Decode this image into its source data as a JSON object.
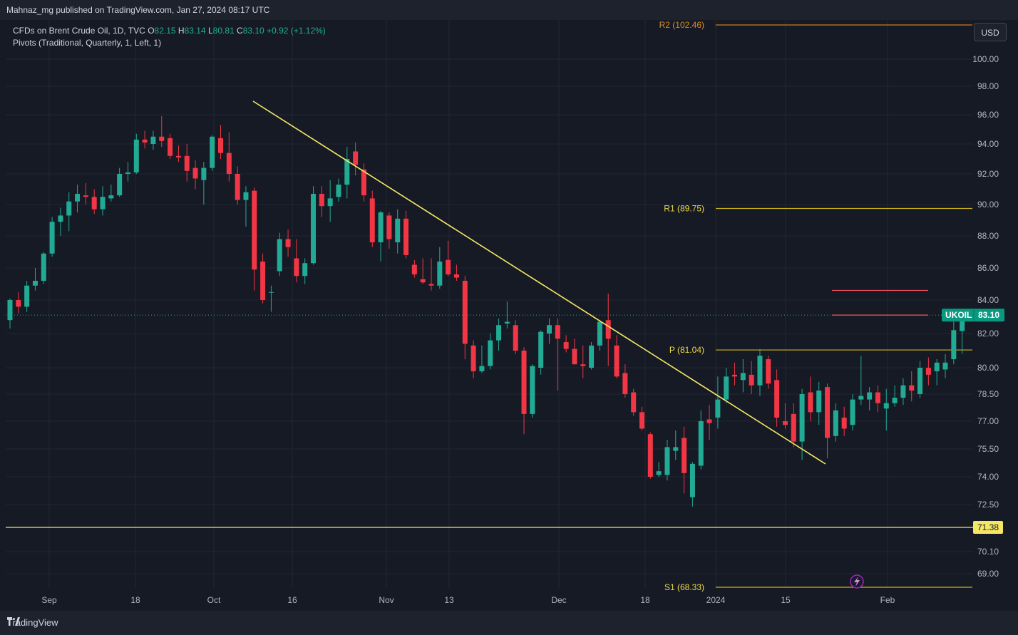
{
  "header": {
    "published_text": "Mahnaz_mg published on TradingView.com, Jan 27, 2024 08:17 UTC"
  },
  "legend": {
    "symbol_line": "CFDs on Brent Crude Oil, 1D, TVC",
    "open_label": "O",
    "open_value": "82.15",
    "high_label": "H",
    "high_value": "83.14",
    "low_label": "L",
    "low_value": "80.81",
    "close_label": "C",
    "close_value": "83.10",
    "change": "+0.92 (+1.12%)",
    "indicator": "Pivots (Traditional, Quarterly, 1, Left, 1)"
  },
  "currency_button": "USD",
  "footer": {
    "brand": "TradingView"
  },
  "colors": {
    "up": "#22ab94",
    "down": "#f23645",
    "trendline": "#f5e663",
    "pivot": "#c9b21b",
    "r2": "#c97d1b",
    "hline": "#f5e663",
    "redline": "#f7525f"
  },
  "chart_data": {
    "type": "candlestick",
    "symbol": "UKOIL",
    "interval": "1D",
    "ylim": [
      67.8,
      102.46
    ],
    "y_ticks": [
      "100.00",
      "98.00",
      "96.00",
      "94.00",
      "92.00",
      "90.00",
      "88.00",
      "86.00",
      "84.00",
      "82.00",
      "80.00",
      "78.50",
      "77.00",
      "75.50",
      "74.00",
      "72.50",
      "70.10",
      "69.00"
    ],
    "x_ticks": [
      "Sep",
      "18",
      "Oct",
      "16",
      "Nov",
      "13",
      "Dec",
      "18",
      "2024",
      "15",
      "Feb"
    ],
    "last_price": {
      "label": "UKOIL",
      "value": "83.10"
    },
    "horizontal_line": {
      "value": "71.38"
    },
    "pivots": [
      {
        "label": "R2 (102.46)",
        "value": 102.46
      },
      {
        "label": "R1 (89.75)",
        "value": 89.75
      },
      {
        "label": "P (81.04)",
        "value": 81.04
      },
      {
        "label": "S1 (68.33)",
        "value": 68.33
      }
    ],
    "trendline": {
      "from": {
        "date": "2023-10-09",
        "price": 97.0
      },
      "to": {
        "date": "2024-01-22",
        "price": 74.5
      }
    },
    "candles": [
      {
        "o": 82.8,
        "h": 84.1,
        "l": 82.3,
        "c": 84.0
      },
      {
        "o": 84.0,
        "h": 84.5,
        "l": 83.2,
        "c": 83.6
      },
      {
        "o": 83.6,
        "h": 85.2,
        "l": 83.3,
        "c": 84.9
      },
      {
        "o": 84.9,
        "h": 86.0,
        "l": 84.6,
        "c": 85.2
      },
      {
        "o": 85.2,
        "h": 87.0,
        "l": 85.0,
        "c": 86.9
      },
      {
        "o": 86.9,
        "h": 89.2,
        "l": 86.7,
        "c": 88.9
      },
      {
        "o": 88.9,
        "h": 89.8,
        "l": 88.0,
        "c": 89.3
      },
      {
        "o": 89.3,
        "h": 90.8,
        "l": 88.3,
        "c": 90.2
      },
      {
        "o": 90.2,
        "h": 91.3,
        "l": 89.5,
        "c": 90.7
      },
      {
        "o": 90.6,
        "h": 91.4,
        "l": 90.0,
        "c": 90.5
      },
      {
        "o": 90.5,
        "h": 91.0,
        "l": 89.4,
        "c": 89.7
      },
      {
        "o": 89.7,
        "h": 91.2,
        "l": 89.3,
        "c": 90.5
      },
      {
        "o": 90.4,
        "h": 91.3,
        "l": 90.2,
        "c": 90.6
      },
      {
        "o": 90.6,
        "h": 92.4,
        "l": 90.5,
        "c": 92.0
      },
      {
        "o": 92.0,
        "h": 92.8,
        "l": 91.5,
        "c": 92.1
      },
      {
        "o": 92.1,
        "h": 94.7,
        "l": 92.0,
        "c": 94.3
      },
      {
        "o": 94.3,
        "h": 94.9,
        "l": 93.7,
        "c": 94.1
      },
      {
        "o": 94.0,
        "h": 94.9,
        "l": 93.6,
        "c": 94.5
      },
      {
        "o": 94.5,
        "h": 95.9,
        "l": 93.8,
        "c": 94.2
      },
      {
        "o": 94.4,
        "h": 94.7,
        "l": 93.0,
        "c": 93.2
      },
      {
        "o": 93.2,
        "h": 93.9,
        "l": 92.8,
        "c": 93.1
      },
      {
        "o": 93.2,
        "h": 94.0,
        "l": 91.5,
        "c": 92.2
      },
      {
        "o": 92.4,
        "h": 92.9,
        "l": 91.0,
        "c": 91.7
      },
      {
        "o": 91.6,
        "h": 92.8,
        "l": 90.0,
        "c": 92.4
      },
      {
        "o": 92.4,
        "h": 94.6,
        "l": 92.2,
        "c": 94.5
      },
      {
        "o": 94.4,
        "h": 95.3,
        "l": 93.0,
        "c": 93.4
      },
      {
        "o": 93.4,
        "h": 94.8,
        "l": 91.5,
        "c": 92.0
      },
      {
        "o": 92.0,
        "h": 92.5,
        "l": 90.0,
        "c": 90.3
      },
      {
        "o": 90.3,
        "h": 91.2,
        "l": 88.6,
        "c": 90.8
      },
      {
        "o": 90.9,
        "h": 91.1,
        "l": 84.6,
        "c": 85.9
      },
      {
        "o": 86.4,
        "h": 86.9,
        "l": 83.8,
        "c": 84.0
      },
      {
        "o": 84.5,
        "h": 84.9,
        "l": 83.3,
        "c": 84.5
      },
      {
        "o": 85.8,
        "h": 88.2,
        "l": 85.5,
        "c": 87.8
      },
      {
        "o": 87.8,
        "h": 88.4,
        "l": 86.7,
        "c": 87.3
      },
      {
        "o": 86.6,
        "h": 87.8,
        "l": 85.1,
        "c": 85.5
      },
      {
        "o": 85.5,
        "h": 86.6,
        "l": 85.0,
        "c": 86.3
      },
      {
        "o": 86.3,
        "h": 91.2,
        "l": 86.2,
        "c": 90.7
      },
      {
        "o": 90.7,
        "h": 91.2,
        "l": 89.2,
        "c": 89.9
      },
      {
        "o": 89.9,
        "h": 91.6,
        "l": 88.9,
        "c": 90.4
      },
      {
        "o": 90.5,
        "h": 91.7,
        "l": 90.2,
        "c": 91.3
      },
      {
        "o": 91.3,
        "h": 93.8,
        "l": 90.4,
        "c": 93.0
      },
      {
        "o": 93.5,
        "h": 94.1,
        "l": 91.9,
        "c": 92.6
      },
      {
        "o": 92.3,
        "h": 92.7,
        "l": 90.2,
        "c": 90.6
      },
      {
        "o": 90.4,
        "h": 90.9,
        "l": 87.3,
        "c": 87.6
      },
      {
        "o": 87.6,
        "h": 89.6,
        "l": 86.4,
        "c": 89.5
      },
      {
        "o": 89.3,
        "h": 89.5,
        "l": 87.2,
        "c": 87.8
      },
      {
        "o": 87.6,
        "h": 89.7,
        "l": 86.9,
        "c": 89.1
      },
      {
        "o": 89.1,
        "h": 89.6,
        "l": 86.6,
        "c": 86.8
      },
      {
        "o": 86.2,
        "h": 86.5,
        "l": 85.4,
        "c": 85.6
      },
      {
        "o": 85.3,
        "h": 86.6,
        "l": 85.0,
        "c": 85.1
      },
      {
        "o": 85.0,
        "h": 86.6,
        "l": 84.6,
        "c": 84.9
      },
      {
        "o": 84.9,
        "h": 87.3,
        "l": 84.7,
        "c": 86.4
      },
      {
        "o": 86.5,
        "h": 87.7,
        "l": 85.5,
        "c": 85.6
      },
      {
        "o": 85.6,
        "h": 86.2,
        "l": 85.2,
        "c": 85.4
      },
      {
        "o": 85.2,
        "h": 85.5,
        "l": 80.5,
        "c": 81.4
      },
      {
        "o": 81.3,
        "h": 81.6,
        "l": 79.4,
        "c": 79.8
      },
      {
        "o": 79.8,
        "h": 81.3,
        "l": 79.7,
        "c": 80.1
      },
      {
        "o": 80.1,
        "h": 82.0,
        "l": 79.9,
        "c": 81.6
      },
      {
        "o": 81.6,
        "h": 82.9,
        "l": 81.0,
        "c": 82.5
      },
      {
        "o": 82.6,
        "h": 83.9,
        "l": 82.3,
        "c": 82.7
      },
      {
        "o": 82.5,
        "h": 82.8,
        "l": 80.8,
        "c": 81.0
      },
      {
        "o": 81.0,
        "h": 81.2,
        "l": 76.3,
        "c": 77.4
      },
      {
        "o": 77.4,
        "h": 80.2,
        "l": 77.2,
        "c": 80.1
      },
      {
        "o": 80.0,
        "h": 82.2,
        "l": 79.6,
        "c": 82.1
      },
      {
        "o": 82.0,
        "h": 82.9,
        "l": 81.4,
        "c": 82.5
      },
      {
        "o": 82.5,
        "h": 82.9,
        "l": 78.7,
        "c": 81.7
      },
      {
        "o": 81.5,
        "h": 81.9,
        "l": 80.9,
        "c": 81.1
      },
      {
        "o": 81.1,
        "h": 81.7,
        "l": 80.2,
        "c": 80.2
      },
      {
        "o": 80.2,
        "h": 81.3,
        "l": 79.4,
        "c": 80.1
      },
      {
        "o": 80.0,
        "h": 81.5,
        "l": 79.9,
        "c": 81.3
      },
      {
        "o": 81.3,
        "h": 82.8,
        "l": 81.0,
        "c": 82.7
      },
      {
        "o": 82.8,
        "h": 84.4,
        "l": 80.1,
        "c": 81.7
      },
      {
        "o": 81.3,
        "h": 81.9,
        "l": 79.4,
        "c": 79.5
      },
      {
        "o": 79.7,
        "h": 80.2,
        "l": 78.3,
        "c": 78.5
      },
      {
        "o": 78.6,
        "h": 78.8,
        "l": 77.3,
        "c": 77.5
      },
      {
        "o": 77.5,
        "h": 77.8,
        "l": 76.5,
        "c": 76.6
      },
      {
        "o": 76.3,
        "h": 76.4,
        "l": 73.9,
        "c": 74.0
      },
      {
        "o": 74.1,
        "h": 74.8,
        "l": 74.0,
        "c": 74.3
      },
      {
        "o": 74.1,
        "h": 76.0,
        "l": 73.8,
        "c": 75.6
      },
      {
        "o": 75.4,
        "h": 76.5,
        "l": 74.9,
        "c": 75.6
      },
      {
        "o": 76.1,
        "h": 76.7,
        "l": 73.1,
        "c": 74.2
      },
      {
        "o": 72.9,
        "h": 74.8,
        "l": 72.4,
        "c": 74.7
      },
      {
        "o": 74.6,
        "h": 77.6,
        "l": 74.4,
        "c": 77.0
      },
      {
        "o": 77.1,
        "h": 77.9,
        "l": 76.0,
        "c": 76.9
      },
      {
        "o": 77.2,
        "h": 79.5,
        "l": 76.6,
        "c": 78.2
      },
      {
        "o": 78.2,
        "h": 80.0,
        "l": 78.0,
        "c": 79.5
      },
      {
        "o": 79.6,
        "h": 80.3,
        "l": 79.0,
        "c": 79.5
      },
      {
        "o": 79.3,
        "h": 80.5,
        "l": 78.6,
        "c": 79.7
      },
      {
        "o": 79.6,
        "h": 80.4,
        "l": 78.5,
        "c": 79.0
      },
      {
        "o": 79.0,
        "h": 81.1,
        "l": 78.4,
        "c": 80.7
      },
      {
        "o": 80.5,
        "h": 80.7,
        "l": 78.8,
        "c": 79.1
      },
      {
        "o": 79.3,
        "h": 79.9,
        "l": 76.7,
        "c": 77.2
      },
      {
        "o": 77.0,
        "h": 78.0,
        "l": 76.6,
        "c": 76.8
      },
      {
        "o": 77.4,
        "h": 78.0,
        "l": 75.6,
        "c": 75.9
      },
      {
        "o": 75.9,
        "h": 78.8,
        "l": 74.9,
        "c": 78.5
      },
      {
        "o": 78.6,
        "h": 79.5,
        "l": 77.0,
        "c": 77.5
      },
      {
        "o": 77.5,
        "h": 79.2,
        "l": 76.8,
        "c": 78.7
      },
      {
        "o": 78.9,
        "h": 79.1,
        "l": 75.0,
        "c": 76.1
      },
      {
        "o": 76.2,
        "h": 78.0,
        "l": 75.9,
        "c": 77.6
      },
      {
        "o": 77.2,
        "h": 77.8,
        "l": 76.2,
        "c": 76.6
      },
      {
        "o": 76.8,
        "h": 78.5,
        "l": 76.5,
        "c": 78.2
      },
      {
        "o": 78.2,
        "h": 80.7,
        "l": 77.9,
        "c": 78.4
      },
      {
        "o": 78.2,
        "h": 78.9,
        "l": 77.6,
        "c": 78.6
      },
      {
        "o": 78.6,
        "h": 79.0,
        "l": 77.5,
        "c": 78.0
      },
      {
        "o": 77.7,
        "h": 78.8,
        "l": 76.5,
        "c": 78.0
      },
      {
        "o": 78.0,
        "h": 79.0,
        "l": 77.8,
        "c": 78.3
      },
      {
        "o": 78.3,
        "h": 79.4,
        "l": 77.9,
        "c": 79.0
      },
      {
        "o": 79.0,
        "h": 79.8,
        "l": 78.1,
        "c": 78.7
      },
      {
        "o": 78.5,
        "h": 80.4,
        "l": 78.3,
        "c": 80.0
      },
      {
        "o": 80.0,
        "h": 80.6,
        "l": 79.0,
        "c": 79.6
      },
      {
        "o": 79.8,
        "h": 80.5,
        "l": 79.0,
        "c": 80.3
      },
      {
        "o": 79.9,
        "h": 80.8,
        "l": 79.4,
        "c": 80.3
      },
      {
        "o": 80.5,
        "h": 82.8,
        "l": 80.2,
        "c": 82.2
      },
      {
        "o": 82.15,
        "h": 83.14,
        "l": 80.81,
        "c": 83.1
      }
    ]
  }
}
